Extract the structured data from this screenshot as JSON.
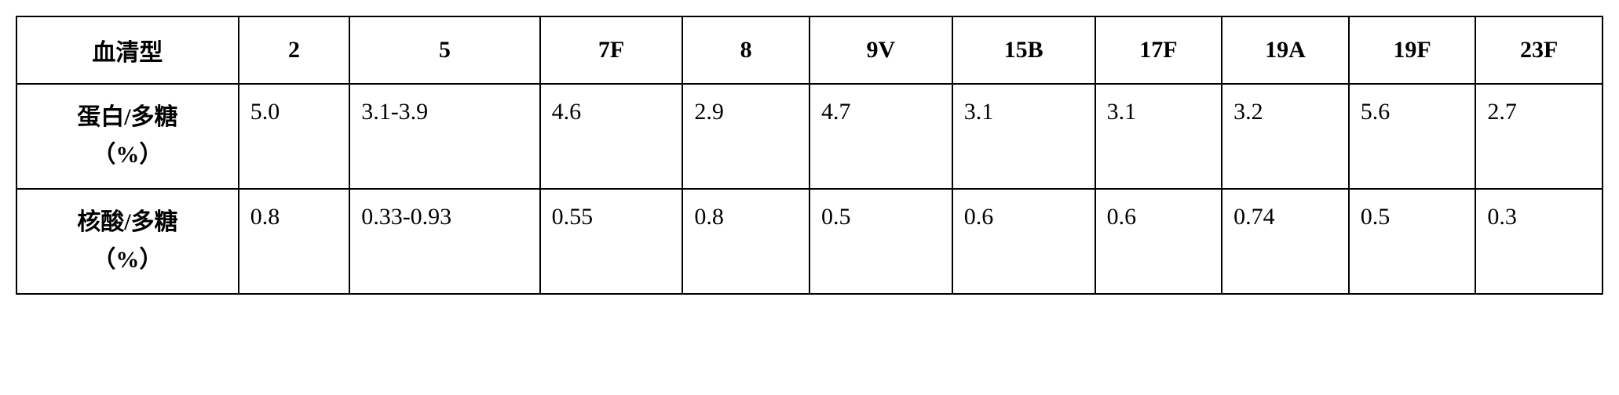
{
  "table": {
    "border_color": "#000000",
    "background_color": "#ffffff",
    "text_color": "#000000",
    "font_size": 30,
    "columns": [
      {
        "key": "header",
        "label": "血清型",
        "width_pct": 14,
        "align": "center"
      },
      {
        "key": "c2",
        "label": "2",
        "width_pct": 7,
        "align": "center"
      },
      {
        "key": "c5",
        "label": "5",
        "width_pct": 12,
        "align": "center"
      },
      {
        "key": "c7f",
        "label": "7F",
        "width_pct": 9,
        "align": "center"
      },
      {
        "key": "c8",
        "label": "8",
        "width_pct": 8,
        "align": "center"
      },
      {
        "key": "c9v",
        "label": "9V",
        "width_pct": 9,
        "align": "center"
      },
      {
        "key": "c15b",
        "label": "15B",
        "width_pct": 9,
        "align": "center"
      },
      {
        "key": "c17f",
        "label": "17F",
        "width_pct": 8,
        "align": "center"
      },
      {
        "key": "c19a",
        "label": "19A",
        "width_pct": 8,
        "align": "center"
      },
      {
        "key": "c19f",
        "label": "19F",
        "width_pct": 8,
        "align": "center"
      },
      {
        "key": "c23f",
        "label": "23F",
        "width_pct": 8,
        "align": "center"
      }
    ],
    "rows": [
      {
        "header_line1": "蛋白/多糖",
        "header_line2": "（%）",
        "cells": [
          "5.0",
          "3.1-3.9",
          "4.6",
          "2.9",
          "4.7",
          "3.1",
          "3.1",
          "3.2",
          "5.6",
          "2.7"
        ]
      },
      {
        "header_line1": "核酸/多糖",
        "header_line2": "（%）",
        "cells": [
          "0.8",
          "0.33-0.93",
          "0.55",
          "0.8",
          "0.5",
          "0.6",
          "0.6",
          "0.74",
          "0.5",
          "0.3"
        ]
      }
    ]
  }
}
